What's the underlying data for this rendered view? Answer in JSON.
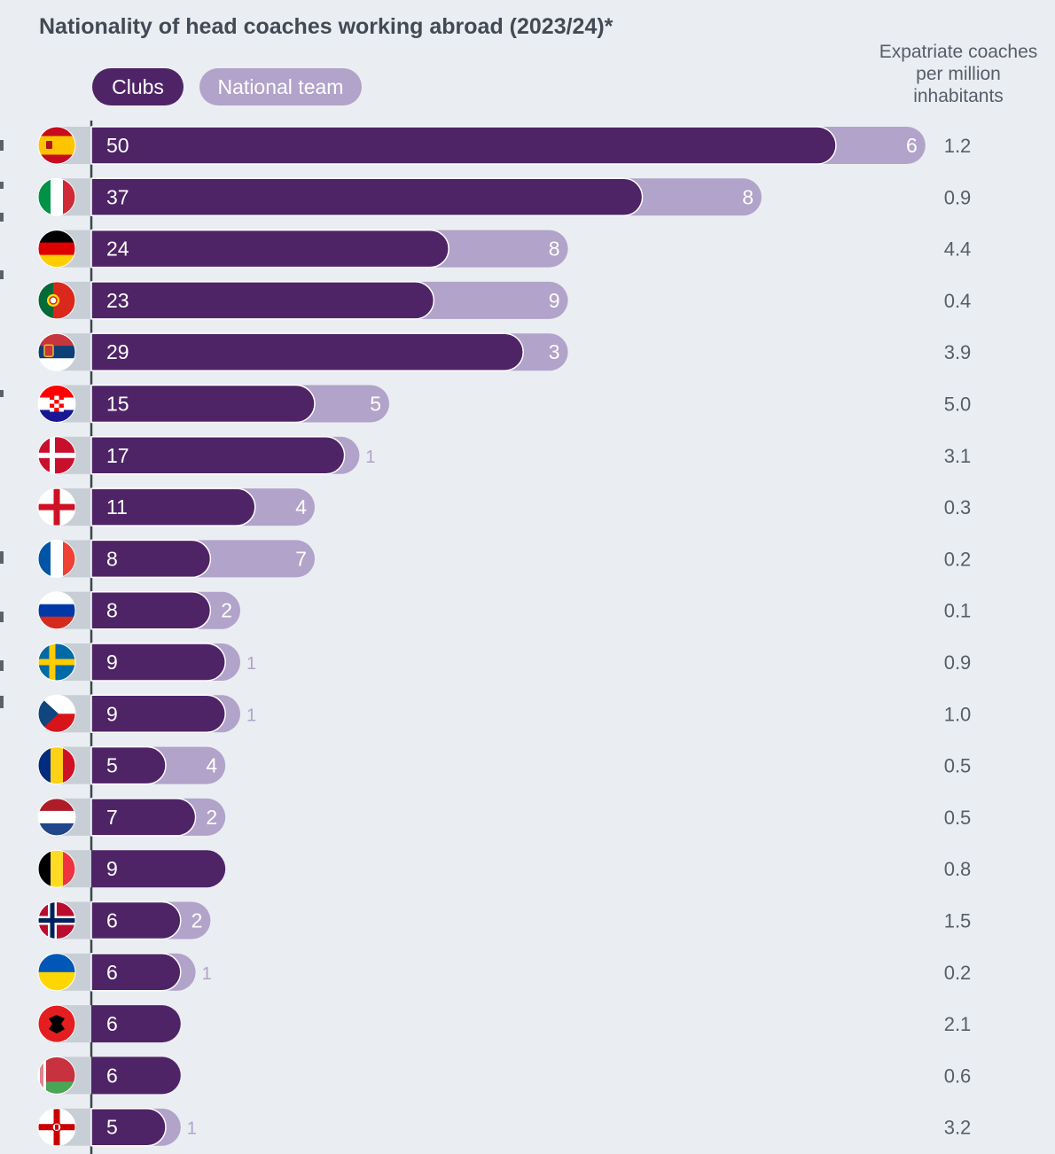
{
  "title": "Nationality of head coaches working abroad (2023/24)*",
  "legend": {
    "clubs": "Clubs",
    "national_team": "National team"
  },
  "side_header": [
    "Expatriate coaches",
    "per million",
    "inhabitants"
  ],
  "colors": {
    "clubs": "#4f2467",
    "national_team": "#b1a3c9",
    "background": "#eaeef2",
    "flag_backer": "#c8ced5",
    "axis": "#3c444d"
  },
  "chart_data": {
    "type": "bar",
    "orientation": "horizontal",
    "stacked": true,
    "title": "Nationality of head coaches working abroad (2023/24)*",
    "categories": [
      "Spain",
      "Italy",
      "Germany",
      "Portugal",
      "Serbia",
      "Croatia",
      "Denmark",
      "England",
      "France",
      "Russia",
      "Sweden",
      "Czechia",
      "Romania",
      "Netherlands",
      "Belgium",
      "Norway",
      "Ukraine",
      "Albania",
      "Belarus",
      "Northern Ireland"
    ],
    "category_icons": [
      "flag-spain",
      "flag-italy",
      "flag-germany",
      "flag-portugal",
      "flag-serbia",
      "flag-croatia",
      "flag-denmark",
      "flag-england",
      "flag-france",
      "flag-russia",
      "flag-sweden",
      "flag-czechia",
      "flag-romania",
      "flag-netherlands",
      "flag-belgium",
      "flag-norway",
      "flag-ukraine",
      "flag-albania",
      "flag-belarus",
      "flag-northern-ireland"
    ],
    "series": [
      {
        "name": "Clubs",
        "values": [
          50,
          37,
          24,
          23,
          29,
          15,
          17,
          11,
          8,
          8,
          9,
          9,
          5,
          7,
          9,
          6,
          6,
          6,
          6,
          5
        ]
      },
      {
        "name": "National team",
        "values": [
          6,
          8,
          8,
          9,
          3,
          5,
          1,
          4,
          7,
          2,
          1,
          1,
          4,
          2,
          0,
          2,
          1,
          0,
          0,
          1
        ]
      }
    ],
    "expatriate_per_million": [
      "1.2",
      "0.9",
      "4.4",
      "0.4",
      "3.9",
      "5.0",
      "3.1",
      "0.3",
      "0.2",
      "0.1",
      "0.9",
      "1.0",
      "0.5",
      "0.5",
      "0.8",
      "1.5",
      "0.2",
      "2.1",
      "0.6",
      "3.2"
    ],
    "legend_position": "top-left",
    "grid": false
  }
}
